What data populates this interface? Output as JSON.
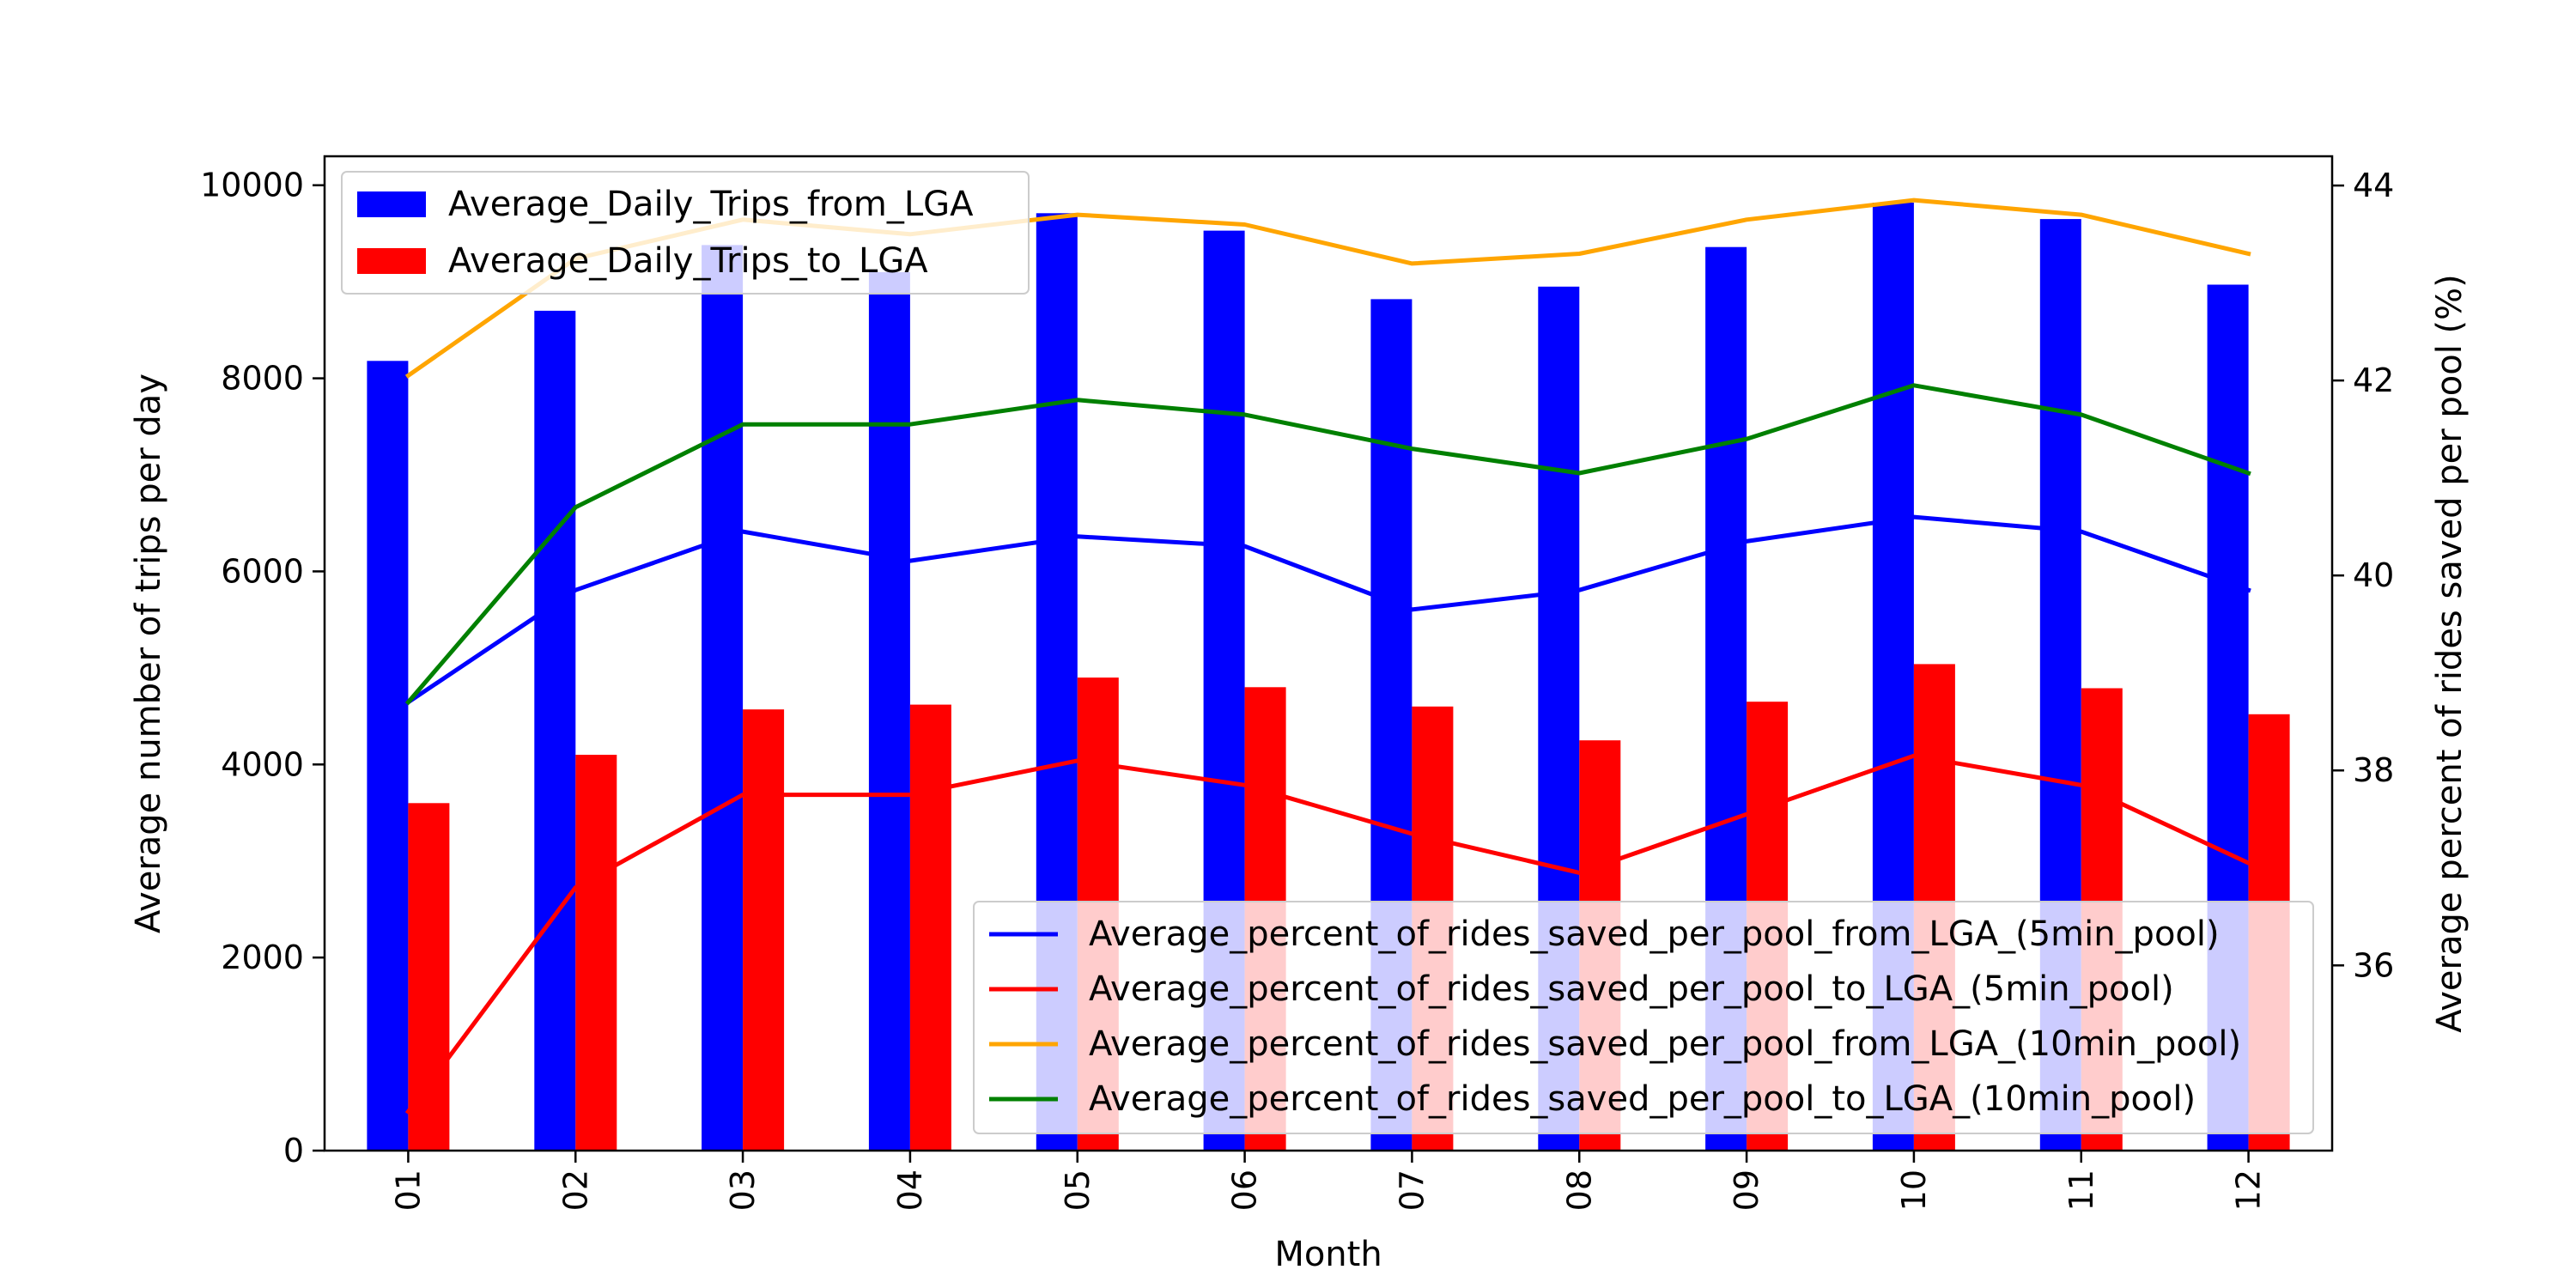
{
  "chart_data": {
    "type": "bar",
    "title": "",
    "xlabel": "Month",
    "ylabel": "Average number of trips per day",
    "y2label": "Average percent of rides saved per pool (%)",
    "categories": [
      "01",
      "02",
      "03",
      "04",
      "05",
      "06",
      "07",
      "08",
      "09",
      "10",
      "11",
      "12"
    ],
    "ylim": [
      0,
      10300
    ],
    "y_ticks": [
      0,
      2000,
      4000,
      6000,
      8000,
      10000
    ],
    "y2lim": [
      34.1,
      44.3
    ],
    "y2_ticks": [
      36,
      38,
      40,
      42,
      44
    ],
    "grid": false,
    "bar_series": [
      {
        "name": "Average_Daily_Trips_from_LGA",
        "color": "#0000ff",
        "axis": "left",
        "values": [
          8180,
          8700,
          9380,
          9100,
          9710,
          9530,
          8820,
          8950,
          9360,
          9820,
          9650,
          8970
        ]
      },
      {
        "name": "Average_Daily_Trips_to_LGA",
        "color": "#ff0000",
        "axis": "left",
        "values": [
          3600,
          4100,
          4570,
          4620,
          4900,
          4800,
          4600,
          4250,
          4650,
          5040,
          4790,
          4520
        ]
      }
    ],
    "line_series": [
      {
        "name": "Average_percent_of_rides_saved_per_pool_from_LGA_(5min_pool)",
        "color": "#0000ff",
        "axis": "right",
        "values": [
          38.7,
          39.85,
          40.45,
          40.15,
          40.4,
          40.3,
          39.65,
          39.85,
          40.35,
          40.6,
          40.45,
          39.85
        ]
      },
      {
        "name": "Average_percent_of_rides_saved_per_pool_to_LGA_(5min_pool)",
        "color": "#ff0000",
        "axis": "right",
        "values": [
          34.5,
          36.8,
          37.75,
          37.75,
          38.1,
          37.85,
          37.35,
          36.95,
          37.55,
          38.15,
          37.85,
          37.05
        ]
      },
      {
        "name": "Average_percent_of_rides_saved_per_pool_from_LGA_(10min_pool)",
        "color": "#ffa500",
        "axis": "right",
        "values": [
          42.05,
          43.25,
          43.65,
          43.5,
          43.7,
          43.6,
          43.2,
          43.3,
          43.65,
          43.85,
          43.7,
          43.3
        ]
      },
      {
        "name": "Average_percent_of_rides_saved_per_pool_to_LGA_(10min_pool)",
        "color": "#008000",
        "axis": "right",
        "values": [
          38.7,
          40.7,
          41.55,
          41.55,
          41.8,
          41.65,
          41.3,
          41.05,
          41.4,
          41.95,
          41.65,
          41.05
        ]
      }
    ],
    "legend_bars_placement": "upper-left",
    "legend_lines_placement": "lower-right"
  }
}
